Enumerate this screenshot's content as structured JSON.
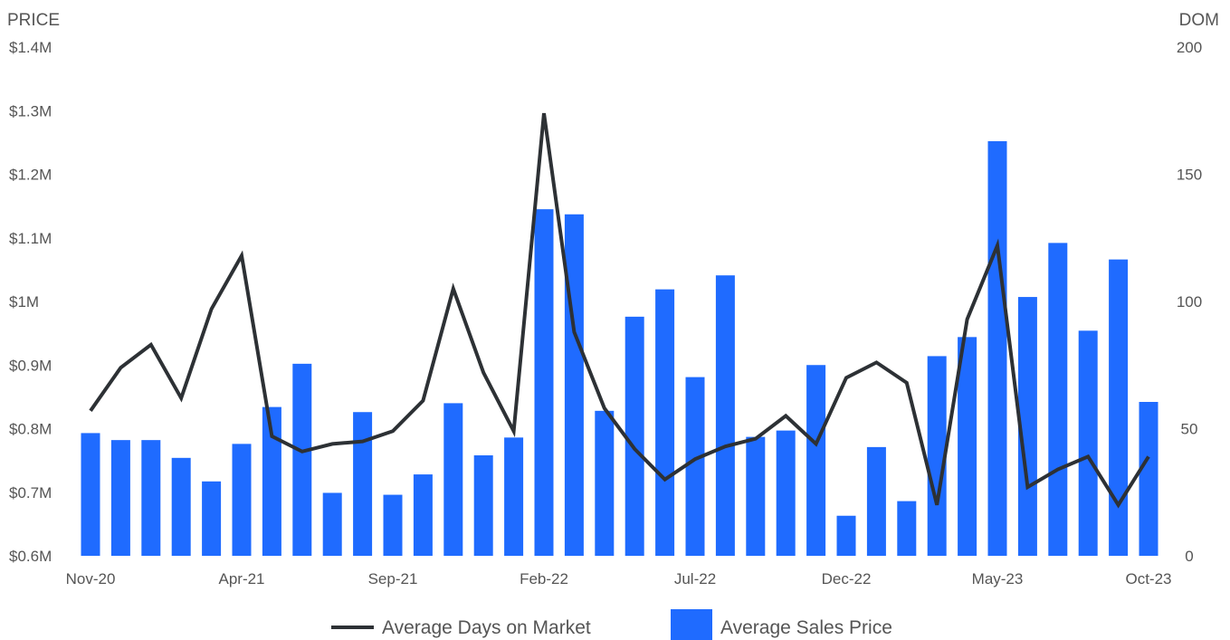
{
  "chart_data": {
    "type": "bar",
    "y_left_title": "PRICE",
    "y_right_title": "DOM",
    "ylim_left": [
      600000,
      1400000
    ],
    "ylim_right": [
      0,
      200
    ],
    "y_left_ticks": [
      "$1.4M",
      "$1.3M",
      "$1.2M",
      "$1.1M",
      "$1M",
      "$0.9M",
      "$0.8M",
      "$0.7M",
      "$0.6M"
    ],
    "y_right_ticks": [
      "200",
      "150",
      "100",
      "50",
      "0"
    ],
    "x_tick_labels": [
      {
        "label": "Nov-20",
        "index": 0
      },
      {
        "label": "Apr-21",
        "index": 5
      },
      {
        "label": "Sep-21",
        "index": 10
      },
      {
        "label": "Feb-22",
        "index": 15
      },
      {
        "label": "Jul-22",
        "index": 20
      },
      {
        "label": "Dec-22",
        "index": 25
      },
      {
        "label": "May-23",
        "index": 30
      },
      {
        "label": "Oct-23",
        "index": 35
      }
    ],
    "categories": [
      "Nov-20",
      "Dec-20",
      "Jan-21",
      "Feb-21",
      "Mar-21",
      "Apr-21",
      "May-21",
      "Jun-21",
      "Jul-21",
      "Aug-21",
      "Sep-21",
      "Oct-21",
      "Nov-21",
      "Dec-21",
      "Jan-22",
      "Feb-22",
      "Mar-22",
      "Apr-22",
      "May-22",
      "Jun-22",
      "Jul-22",
      "Aug-22",
      "Sep-22",
      "Oct-22",
      "Nov-22",
      "Dec-22",
      "Jan-23",
      "Feb-23",
      "Mar-23",
      "Apr-23",
      "May-23",
      "Jun-23",
      "Jul-23",
      "Aug-23",
      "Sep-23",
      "Oct-23"
    ],
    "series": [
      {
        "name": "Average Sales Price",
        "type": "bar",
        "axis": "left",
        "color": "#1f6bff",
        "values": [
          793000,
          782000,
          782000,
          754000,
          717000,
          776000,
          834000,
          902000,
          699000,
          826000,
          696000,
          728000,
          840000,
          758000,
          786000,
          1145000,
          1137000,
          828000,
          976000,
          1019000,
          881000,
          1041000,
          787000,
          797000,
          900000,
          663000,
          771000,
          686000,
          914000,
          944000,
          1252000,
          1007000,
          1092000,
          954000,
          1066000,
          842000
        ]
      },
      {
        "name": "Average Days on Market",
        "type": "line",
        "axis": "right",
        "color": "#2d3135",
        "values": [
          57,
          74,
          83,
          62,
          97,
          118,
          47,
          41,
          44,
          45,
          49,
          61,
          105,
          72,
          49,
          174,
          88,
          58,
          42,
          30,
          38,
          43,
          46,
          55,
          44,
          70,
          76,
          68,
          20,
          93,
          122,
          27,
          34,
          39,
          20,
          39
        ]
      }
    ],
    "legend": {
      "placement": "bottom",
      "items": [
        {
          "label": "Average Days on Market",
          "kind": "line",
          "color": "#2d3135"
        },
        {
          "label": "Average Sales Price",
          "kind": "bar",
          "color": "#1f6bff"
        }
      ]
    },
    "grid": false
  }
}
